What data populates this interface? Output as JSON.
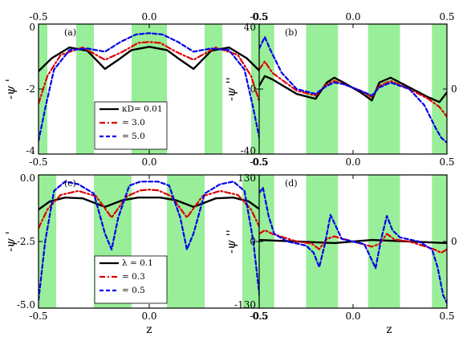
{
  "figure": {
    "xlabel_bottom": "z",
    "shaded_color": "#99ee99"
  },
  "chart_data": [
    {
      "type": "line",
      "panel": "(a)",
      "xlim": [
        -0.5,
        0.5
      ],
      "ylim": [
        -4,
        0
      ],
      "x_ticks": [
        "-0.5",
        "0.0",
        "0.5"
      ],
      "y_ticks": [
        "0",
        "-2",
        "-4"
      ],
      "y_tick_values": [
        0,
        -2,
        -4
      ],
      "ylabel": "-ψ '",
      "xlabel": "",
      "shaded_bands": [
        [
          -0.5,
          -0.46
        ],
        [
          -0.33,
          -0.25
        ],
        [
          -0.08,
          0.08
        ],
        [
          0.25,
          0.33
        ],
        [
          0.46,
          0.5
        ]
      ],
      "legend": {
        "position": "bottom-left",
        "title": "",
        "entries": [
          "κD= 0.01",
          "= 3.0",
          "= 5.0"
        ]
      },
      "series": [
        {
          "name": "κD= 0.01",
          "color": "#000000",
          "dash": "solid",
          "x": [
            -0.5,
            -0.44,
            -0.36,
            -0.28,
            -0.2,
            -0.14,
            -0.08,
            0.0,
            0.08,
            0.14,
            0.2,
            0.28,
            0.36,
            0.44,
            0.5
          ],
          "y": [
            -1.45,
            -1.05,
            -0.72,
            -0.82,
            -1.38,
            -1.1,
            -0.8,
            -0.7,
            -0.8,
            -1.1,
            -1.38,
            -0.82,
            -0.72,
            -1.05,
            -1.45
          ]
        },
        {
          "name": "= 3.0",
          "color": "#dd0000",
          "dash": "dashdot",
          "x": [
            -0.5,
            -0.46,
            -0.4,
            -0.3,
            -0.2,
            -0.12,
            -0.05,
            0.0,
            0.05,
            0.12,
            0.2,
            0.3,
            0.4,
            0.46,
            0.5
          ],
          "y": [
            -2.45,
            -1.6,
            -0.95,
            -0.72,
            -1.1,
            -0.85,
            -0.58,
            -0.55,
            -0.58,
            -0.85,
            -1.1,
            -0.72,
            -0.95,
            -1.6,
            -2.45
          ]
        },
        {
          "name": "= 5.0",
          "color": "#0000ee",
          "dash": "dashed",
          "x": [
            -0.5,
            -0.47,
            -0.43,
            -0.36,
            -0.28,
            -0.2,
            -0.13,
            -0.06,
            0.0,
            0.06,
            0.13,
            0.2,
            0.28,
            0.36,
            0.43,
            0.47,
            0.5
          ],
          "y": [
            -3.6,
            -2.6,
            -1.4,
            -0.8,
            -0.75,
            -0.85,
            -0.55,
            -0.32,
            -0.28,
            -0.32,
            -0.55,
            -0.85,
            -0.75,
            -0.8,
            -1.4,
            -2.6,
            -3.6
          ]
        }
      ]
    },
    {
      "type": "line",
      "panel": "(b)",
      "xlim": [
        -0.5,
        0.5
      ],
      "ylim": [
        -40,
        40
      ],
      "x_ticks": [
        "-0.5",
        "0.0",
        "0.5"
      ],
      "y_ticks": [
        "40",
        "0",
        "-40"
      ],
      "y_tick_values": [
        40,
        0,
        -40
      ],
      "ylabel": "-ψ ''",
      "xlabel": "",
      "right_label": "0",
      "shaded_bands": [
        [
          -0.5,
          -0.42
        ],
        [
          -0.25,
          -0.08
        ],
        [
          0.08,
          0.25
        ],
        [
          0.42,
          0.5
        ]
      ],
      "series": [
        {
          "name": "κD= 0.01",
          "color": "#000000",
          "dash": "solid",
          "x": [
            -0.5,
            -0.47,
            -0.43,
            -0.3,
            -0.2,
            -0.14,
            -0.1,
            -0.05,
            0.04,
            0.1,
            0.14,
            0.2,
            0.3,
            0.4,
            0.46,
            0.5
          ],
          "y": [
            2,
            8,
            6,
            -3,
            -6,
            4,
            7,
            4,
            -2,
            -7,
            4,
            7,
            1,
            -5,
            -8,
            -2
          ]
        },
        {
          "name": "= 3.0",
          "color": "#dd0000",
          "dash": "dashdot",
          "x": [
            -0.5,
            -0.47,
            -0.43,
            -0.3,
            -0.2,
            -0.14,
            -0.1,
            -0.05,
            0.04,
            0.1,
            0.14,
            0.2,
            0.3,
            0.4,
            0.46,
            0.5
          ],
          "y": [
            12,
            17,
            10,
            -1,
            -4,
            3,
            5,
            3,
            -1,
            -5,
            2,
            5,
            0,
            -6,
            -11,
            -17
          ]
        },
        {
          "name": "= 5.0",
          "color": "#0000ee",
          "dash": "dashed",
          "x": [
            -0.5,
            -0.47,
            -0.44,
            -0.38,
            -0.3,
            -0.2,
            -0.14,
            -0.1,
            -0.05,
            0.04,
            0.1,
            0.14,
            0.2,
            0.3,
            0.38,
            0.44,
            0.47,
            0.5
          ],
          "y": [
            25,
            32,
            24,
            10,
            0,
            -3,
            2,
            4,
            3,
            -1,
            -4,
            1,
            4,
            0,
            -10,
            -24,
            -30,
            -33
          ]
        }
      ]
    },
    {
      "type": "line",
      "panel": "(c)",
      "xlim": [
        -0.5,
        0.5
      ],
      "ylim": [
        -5,
        0
      ],
      "x_ticks": [
        "-0.5",
        "0.0",
        "0.5"
      ],
      "y_ticks": [
        "0.0",
        "-2.5",
        "-5.0"
      ],
      "y_tick_values": [
        0,
        -2.5,
        -5
      ],
      "ylabel": "-ψ '",
      "xlabel": "z",
      "shaded_bands": [
        [
          -0.5,
          -0.42
        ],
        [
          -0.25,
          -0.08
        ],
        [
          0.08,
          0.25
        ],
        [
          0.42,
          0.5
        ]
      ],
      "legend": {
        "position": "bottom-left",
        "title": "",
        "entries": [
          "λ = 0.1",
          "= 0.3",
          "= 0.5"
        ]
      },
      "series": [
        {
          "name": "λ = 0.1",
          "color": "#000000",
          "dash": "solid",
          "x": [
            -0.5,
            -0.45,
            -0.38,
            -0.3,
            -0.2,
            -0.12,
            -0.05,
            0.0,
            0.05,
            0.12,
            0.2,
            0.3,
            0.38,
            0.45,
            0.5
          ],
          "y": [
            -1.3,
            -1.0,
            -0.85,
            -0.88,
            -1.2,
            -0.95,
            -0.85,
            -0.85,
            -0.85,
            -0.95,
            -1.2,
            -0.88,
            -0.85,
            -1.0,
            -1.3
          ]
        },
        {
          "name": "= 0.3",
          "color": "#dd0000",
          "dash": "dashdot",
          "x": [
            -0.5,
            -0.46,
            -0.4,
            -0.32,
            -0.24,
            -0.17,
            -0.1,
            -0.04,
            0.0,
            0.04,
            0.1,
            0.17,
            0.24,
            0.32,
            0.4,
            0.46,
            0.5
          ],
          "y": [
            -2.0,
            -1.3,
            -0.75,
            -0.6,
            -0.8,
            -1.6,
            -0.8,
            -0.58,
            -0.55,
            -0.58,
            -0.8,
            -1.6,
            -0.8,
            -0.6,
            -0.75,
            -1.3,
            -2.0
          ]
        },
        {
          "name": "= 0.5",
          "color": "#0000ee",
          "dash": "dashed",
          "x": [
            -0.5,
            -0.47,
            -0.43,
            -0.38,
            -0.32,
            -0.25,
            -0.2,
            -0.17,
            -0.14,
            -0.09,
            -0.04,
            0.0,
            0.04,
            0.09,
            0.14,
            0.17,
            0.2,
            0.25,
            0.32,
            0.38,
            0.43,
            0.47,
            0.5
          ],
          "y": [
            -4.7,
            -2.5,
            -0.6,
            -0.25,
            -0.35,
            -0.7,
            -2.2,
            -2.8,
            -1.6,
            -0.4,
            -0.25,
            -0.25,
            -0.25,
            -0.4,
            -1.6,
            -2.8,
            -2.2,
            -0.7,
            -0.35,
            -0.25,
            -0.6,
            -2.5,
            -4.7
          ]
        }
      ]
    },
    {
      "type": "line",
      "panel": "(d)",
      "xlim": [
        -0.5,
        0.5
      ],
      "ylim": [
        -130,
        130
      ],
      "x_ticks": [
        "-0.5",
        "0.0",
        "0.5"
      ],
      "y_ticks": [
        "130",
        "0",
        "-130"
      ],
      "y_tick_values": [
        130,
        0,
        -130
      ],
      "ylabel": "-ψ ''",
      "xlabel": "z",
      "right_label": "0",
      "shaded_bands": [
        [
          -0.5,
          -0.42
        ],
        [
          -0.25,
          -0.08
        ],
        [
          0.08,
          0.25
        ],
        [
          0.42,
          0.5
        ]
      ],
      "series": [
        {
          "name": "λ = 0.1",
          "color": "#000000",
          "dash": "solid",
          "x": [
            -0.5,
            -0.3,
            -0.1,
            0.1,
            0.3,
            0.5
          ],
          "y": [
            3,
            0,
            -3,
            3,
            0,
            -3
          ]
        },
        {
          "name": "= 0.3",
          "color": "#dd0000",
          "dash": "dashdot",
          "x": [
            -0.5,
            -0.47,
            -0.43,
            -0.3,
            -0.22,
            -0.18,
            -0.14,
            -0.1,
            0.0,
            0.1,
            0.14,
            0.18,
            0.22,
            0.3,
            0.43,
            0.47,
            0.5
          ],
          "y": [
            15,
            22,
            15,
            0,
            -4,
            -15,
            5,
            10,
            0,
            -10,
            -5,
            15,
            4,
            0,
            -15,
            -22,
            -15
          ]
        },
        {
          "name": "= 0.5",
          "color": "#0000ee",
          "dash": "dashed",
          "x": [
            -0.5,
            -0.48,
            -0.45,
            -0.42,
            -0.35,
            -0.25,
            -0.21,
            -0.18,
            -0.15,
            -0.12,
            -0.06,
            0.0,
            0.06,
            0.12,
            0.15,
            0.18,
            0.21,
            0.25,
            0.35,
            0.42,
            0.45,
            0.48,
            0.5
          ],
          "y": [
            95,
            105,
            50,
            15,
            0,
            -8,
            -22,
            -50,
            -5,
            52,
            5,
            0,
            -5,
            -52,
            5,
            50,
            22,
            8,
            0,
            -15,
            -50,
            -105,
            -120
          ]
        }
      ]
    }
  ]
}
